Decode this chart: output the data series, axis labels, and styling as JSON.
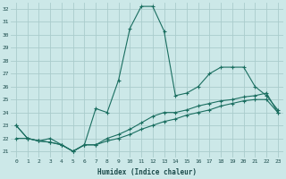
{
  "xlabel": "Humidex (Indice chaleur)",
  "background_color": "#cce8e8",
  "grid_color": "#aacccc",
  "line_color": "#1a6e60",
  "xlim": [
    -0.5,
    23.5
  ],
  "ylim": [
    20.5,
    32.5
  ],
  "yticks": [
    21,
    22,
    23,
    24,
    25,
    26,
    27,
    28,
    29,
    30,
    31,
    32
  ],
  "xticks": [
    0,
    1,
    2,
    3,
    4,
    5,
    6,
    7,
    8,
    9,
    10,
    11,
    12,
    13,
    14,
    15,
    16,
    17,
    18,
    19,
    20,
    21,
    22,
    23
  ],
  "line1_x": [
    0,
    1,
    2,
    3,
    4,
    5,
    6,
    7,
    8,
    9,
    10,
    11,
    12,
    13,
    14,
    15,
    16,
    17,
    18,
    19,
    20,
    21,
    22,
    23
  ],
  "line1_y": [
    23.0,
    22.0,
    21.8,
    21.7,
    21.5,
    21.0,
    21.5,
    21.5,
    22.0,
    22.3,
    22.7,
    23.2,
    23.7,
    24.0,
    24.0,
    24.2,
    24.5,
    24.7,
    24.9,
    25.0,
    25.2,
    25.3,
    25.5,
    24.0
  ],
  "line2_x": [
    0,
    1,
    2,
    3,
    4,
    5,
    6,
    7,
    8,
    9,
    10,
    11,
    12,
    13,
    14,
    15,
    16,
    17,
    18,
    19,
    20,
    21,
    22,
    23
  ],
  "line2_y": [
    23.0,
    22.0,
    21.8,
    22.0,
    21.5,
    21.0,
    21.5,
    24.3,
    24.0,
    26.5,
    30.5,
    32.2,
    32.2,
    30.3,
    25.3,
    25.5,
    26.0,
    27.0,
    27.5,
    27.5,
    27.5,
    26.0,
    25.3,
    24.2
  ],
  "line3_x": [
    0,
    1,
    2,
    3,
    4,
    5,
    6,
    7,
    8,
    9,
    10,
    11,
    12,
    13,
    14,
    15,
    16,
    17,
    18,
    19,
    20,
    21,
    22,
    23
  ],
  "line3_y": [
    22.0,
    22.0,
    21.8,
    21.7,
    21.5,
    21.0,
    21.5,
    21.5,
    21.8,
    22.0,
    22.3,
    22.7,
    23.0,
    23.3,
    23.5,
    23.8,
    24.0,
    24.2,
    24.5,
    24.7,
    24.9,
    25.0,
    25.0,
    24.0
  ]
}
